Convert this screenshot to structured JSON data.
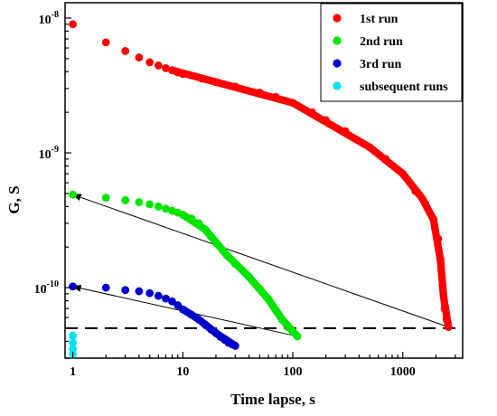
{
  "chart_data": {
    "type": "scatter",
    "title": "",
    "xlabel": "Time lapse, s",
    "ylabel": "G, S",
    "x_scale": "log",
    "y_scale": "log",
    "xlim": [
      0.85,
      3500
    ],
    "ylim": [
      3e-11,
      1.3e-08
    ],
    "x_ticks": [
      {
        "value": 1,
        "label": "1"
      },
      {
        "value": 10,
        "label": "10"
      },
      {
        "value": 100,
        "label": "100"
      },
      {
        "value": 1000,
        "label": "1000"
      }
    ],
    "y_ticks": [
      {
        "value": 1e-08,
        "base": "10",
        "exp": "-8"
      },
      {
        "value": 1e-09,
        "base": "10",
        "exp": "-9"
      },
      {
        "value": 1e-10,
        "base": "10",
        "exp": "-10"
      }
    ],
    "grid": false,
    "legend_position": "top-right",
    "series": [
      {
        "name": "1st run",
        "color": "#ff0000",
        "points": [
          [
            1,
            9e-09
          ],
          [
            2,
            6.6e-09
          ],
          [
            3,
            5.7e-09
          ],
          [
            4,
            5.1e-09
          ],
          [
            5,
            4.7e-09
          ],
          [
            6,
            4.45e-09
          ],
          [
            7,
            4.25e-09
          ],
          [
            8,
            4.1e-09
          ],
          [
            9,
            3.95e-09
          ],
          [
            10,
            3.85e-09
          ],
          [
            15,
            3.55e-09
          ],
          [
            20,
            3.35e-09
          ],
          [
            30,
            3.1e-09
          ],
          [
            50,
            2.8e-09
          ],
          [
            70,
            2.6e-09
          ],
          [
            100,
            2.35e-09
          ],
          [
            150,
            2e-09
          ],
          [
            200,
            1.75e-09
          ],
          [
            300,
            1.45e-09
          ],
          [
            500,
            1.1e-09
          ],
          [
            700,
            9e-10
          ],
          [
            1000,
            7e-10
          ],
          [
            1300,
            5.2e-10
          ],
          [
            1600,
            4.2e-10
          ],
          [
            1900,
            3.2e-10
          ],
          [
            2100,
            2.3e-10
          ],
          [
            2200,
            1.6e-10
          ],
          [
            2300,
            1.05e-10
          ],
          [
            2400,
            7e-11
          ],
          [
            2500,
            5.8e-11
          ],
          [
            2600,
            5.1e-11
          ]
        ],
        "dense_segments": [
          [
            [
              8,
              4.1e-09
            ],
            [
              100,
              2.35e-09
            ],
            [
              500,
              1.1e-09
            ],
            [
              1000,
              7e-10
            ],
            [
              1500,
              4.6e-10
            ],
            [
              1900,
              3.2e-10
            ],
            [
              2200,
              1.6e-10
            ],
            [
              2350,
              8.5e-11
            ],
            [
              2600,
              5.1e-11
            ]
          ]
        ]
      },
      {
        "name": "2nd run",
        "color": "#00e400",
        "points": [
          [
            1,
            4.9e-10
          ],
          [
            2,
            4.65e-10
          ],
          [
            3,
            4.45e-10
          ],
          [
            4,
            4.3e-10
          ],
          [
            5,
            4.15e-10
          ],
          [
            6,
            4e-10
          ],
          [
            7,
            3.85e-10
          ],
          [
            8,
            3.72e-10
          ],
          [
            9,
            3.6e-10
          ],
          [
            10,
            3.48e-10
          ],
          [
            12,
            3.25e-10
          ],
          [
            14,
            3e-10
          ],
          [
            16,
            2.7e-10
          ],
          [
            18,
            2.4e-10
          ],
          [
            20,
            2.15e-10
          ],
          [
            25,
            1.75e-10
          ],
          [
            30,
            1.5e-10
          ],
          [
            40,
            1.2e-10
          ],
          [
            50,
            9.8e-11
          ],
          [
            60,
            8.2e-11
          ],
          [
            70,
            6.8e-11
          ],
          [
            80,
            5.8e-11
          ],
          [
            90,
            5.1e-11
          ],
          [
            100,
            4.7e-11
          ],
          [
            110,
            4.35e-11
          ]
        ],
        "dense_segments": [
          [
            [
              10,
              3.48e-10
            ],
            [
              16,
              2.7e-10
            ],
            [
              25,
              1.75e-10
            ],
            [
              40,
              1.2e-10
            ],
            [
              60,
              8.2e-11
            ],
            [
              80,
              5.8e-11
            ],
            [
              110,
              4.35e-11
            ]
          ]
        ]
      },
      {
        "name": "3rd run",
        "color": "#0000cc",
        "points": [
          [
            1,
            1.02e-10
          ],
          [
            2,
            1e-10
          ],
          [
            3,
            9.6e-11
          ],
          [
            4,
            9.4e-11
          ],
          [
            5,
            9.1e-11
          ],
          [
            6,
            8.7e-11
          ],
          [
            7,
            8.3e-11
          ],
          [
            8,
            7.9e-11
          ],
          [
            9,
            7.4e-11
          ],
          [
            10,
            6.9e-11
          ],
          [
            12,
            6.3e-11
          ],
          [
            14,
            5.8e-11
          ],
          [
            16,
            5.3e-11
          ],
          [
            18,
            4.9e-11
          ],
          [
            20,
            4.6e-11
          ],
          [
            22,
            4.3e-11
          ],
          [
            24,
            4.1e-11
          ],
          [
            26,
            3.9e-11
          ],
          [
            28,
            3.8e-11
          ],
          [
            30,
            3.7e-11
          ]
        ],
        "dense_segments": [
          [
            [
              10,
              6.9e-11
            ],
            [
              14,
              5.8e-11
            ],
            [
              20,
              4.6e-11
            ],
            [
              30,
              3.7e-11
            ]
          ]
        ]
      },
      {
        "name": "subsequent runs",
        "color": "#00e5ee",
        "points": [
          [
            1,
            4.4e-11
          ],
          [
            1,
            3.9e-11
          ],
          [
            1,
            3.5e-11
          ],
          [
            1,
            3.2e-11
          ]
        ],
        "dense_segments": []
      }
    ],
    "annotations": {
      "dashed_level": 5e-11,
      "arrows": [
        {
          "from": [
            2600,
            5.1e-11
          ],
          "to": [
            1,
            4.9e-10
          ]
        },
        {
          "from": [
            110,
            4.35e-11
          ],
          "to": [
            1,
            1.02e-10
          ]
        }
      ]
    }
  }
}
